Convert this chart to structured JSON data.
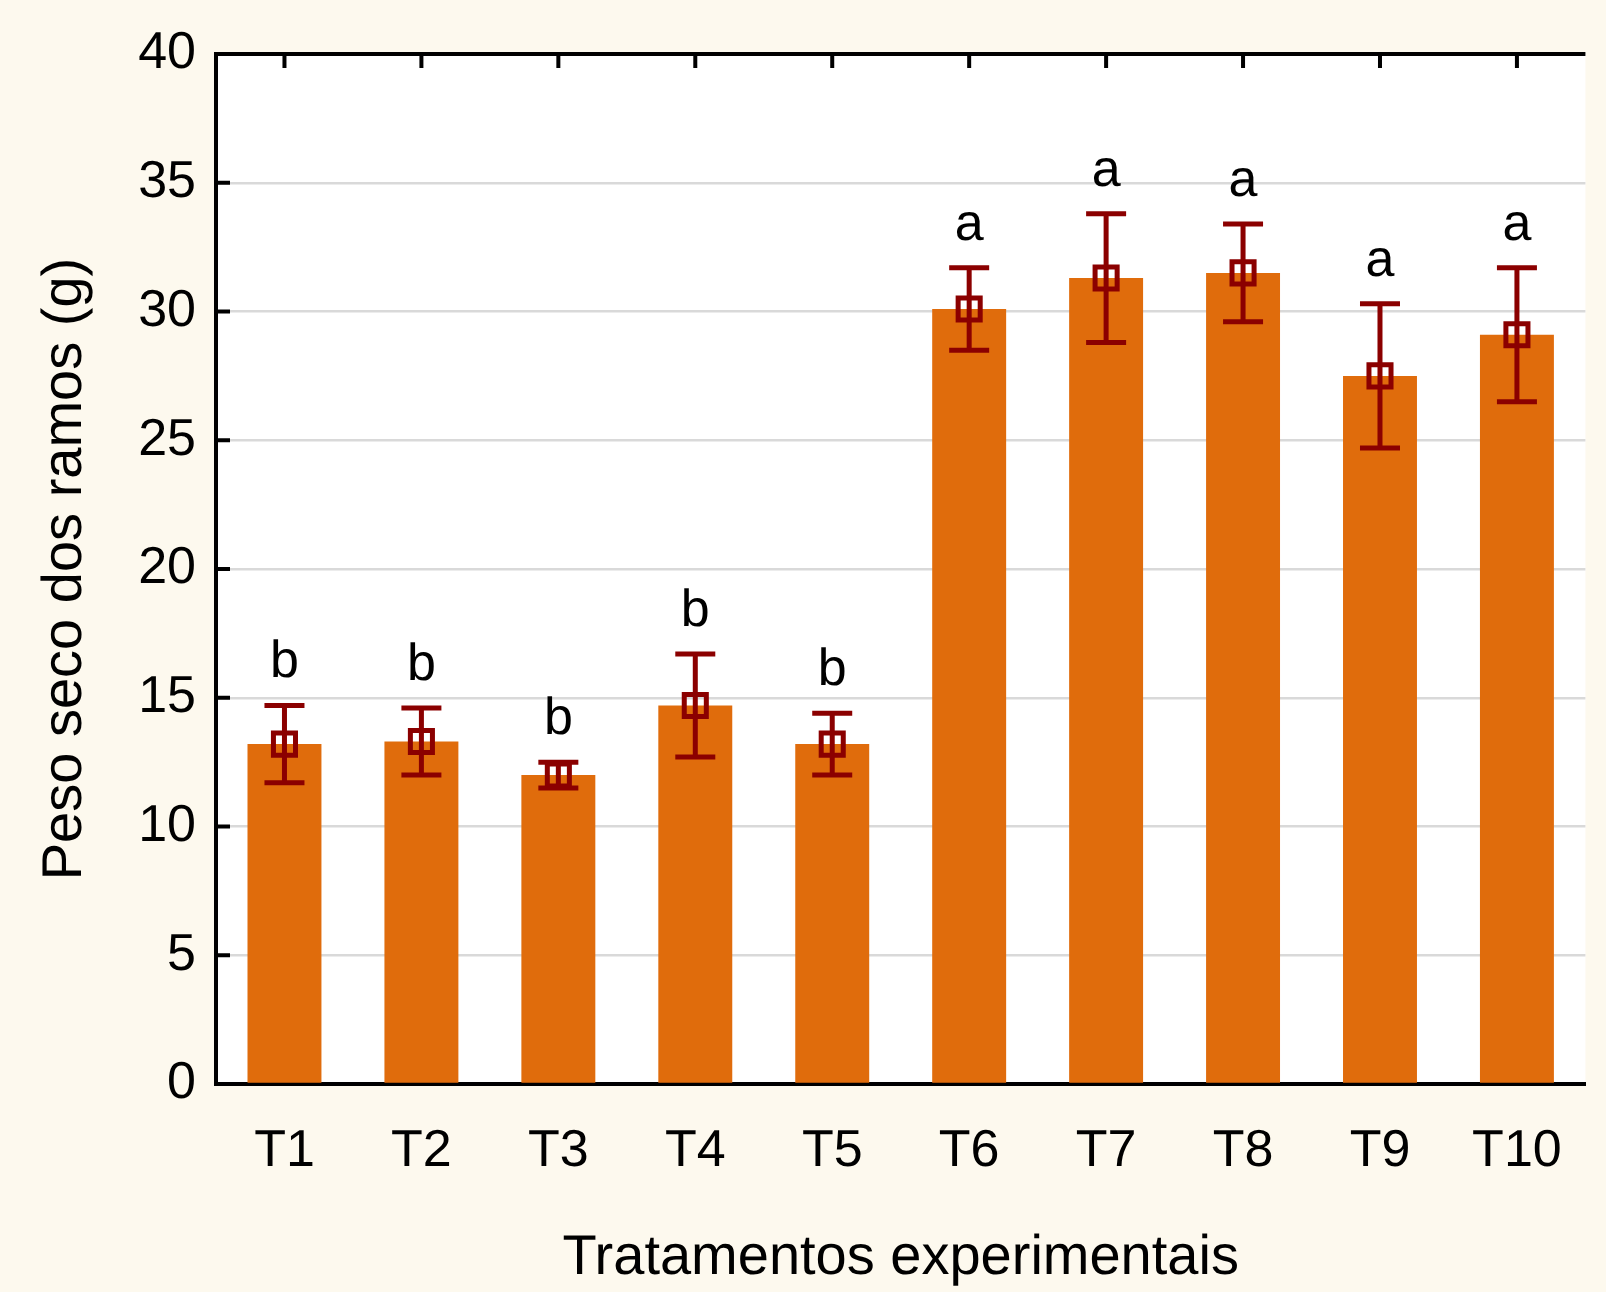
{
  "chart_data": {
    "type": "bar",
    "xlabel": "Tratamentos experimentais",
    "ylabel": "Peso seco dos ramos (g)",
    "categories": [
      "T1",
      "T2",
      "T3",
      "T4",
      "T5",
      "T6",
      "T7",
      "T8",
      "T9",
      "T10"
    ],
    "series": [
      {
        "color": "#e06c0c",
        "values": [
          13.2,
          13.3,
          12.0,
          14.7,
          13.2,
          30.1,
          31.3,
          31.5,
          27.5,
          29.1
        ]
      },
      {
        "type": "scatter",
        "color": "#8b0000",
        "x": [
          "T1",
          "T2",
          "T3",
          "T4",
          "T5",
          "T6",
          "T7",
          "T8",
          "T9",
          "T10"
        ],
        "values": [
          13.2,
          13.3,
          12.0,
          14.7,
          13.2,
          30.1,
          31.3,
          31.5,
          27.5,
          29.1
        ],
        "errors": [
          1.5,
          1.3,
          0.5,
          2.0,
          1.2,
          1.6,
          2.5,
          1.9,
          2.8,
          2.6
        ]
      }
    ],
    "marker": "square",
    "grid": "y",
    "ylim": [
      0,
      40
    ],
    "yticks": [
      0,
      5,
      10,
      15,
      20,
      25,
      30,
      35,
      40
    ],
    "annotations": [
      "b",
      "b",
      "b",
      "b",
      "b",
      "a",
      "a",
      "a",
      "a",
      "a"
    ]
  }
}
